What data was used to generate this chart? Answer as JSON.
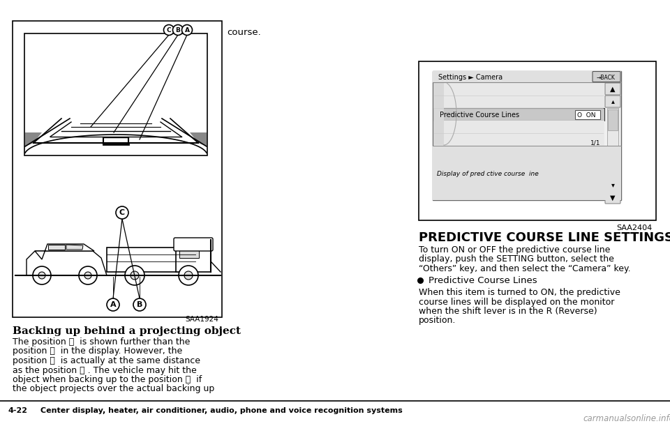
{
  "bg_color": "#ffffff",
  "page_number": "4-22",
  "footer_text": "Center display, heater, air conditioner, audio, phone and voice recognition systems",
  "watermark": "carmanualsonline.info",
  "left_diagram_label": "SAA1924",
  "left_title": "Backing up behind a projecting object",
  "left_body_lines": [
    "The position Ⓒ  is shown further than the",
    "position Ⓑ  in the display. However, the",
    "position Ⓒ  is actually at the same distance",
    "as the position Ⓐ . The vehicle may hit the",
    "object when backing up to the position Ⓐ  if",
    "the object projects over the actual backing up"
  ],
  "right_diagram_label": "SAA2404",
  "right_title": "PREDICTIVE COURSE LINE SETTINGS",
  "right_body1_lines": [
    "To turn ON or OFF the predictive course line",
    "display, push the SETTING button, select the",
    "“Others” key, and then select the “Camera” key."
  ],
  "right_bullet": "Predictive Course Lines",
  "right_body2_lines": [
    "When this item is turned to ON, the predictive",
    "course lines will be displayed on the monitor",
    "when the shift lever is in the R (Reverse)",
    "position."
  ],
  "course_text_top": "course.",
  "screen_header": "Settings ► Camera",
  "screen_back_btn": "→BACK",
  "screen_menu_item": "Predictive Course Lines",
  "screen_on_btn": "O  ON",
  "screen_page": "1/1",
  "screen_footer": "Display of pred ctive course  ine"
}
